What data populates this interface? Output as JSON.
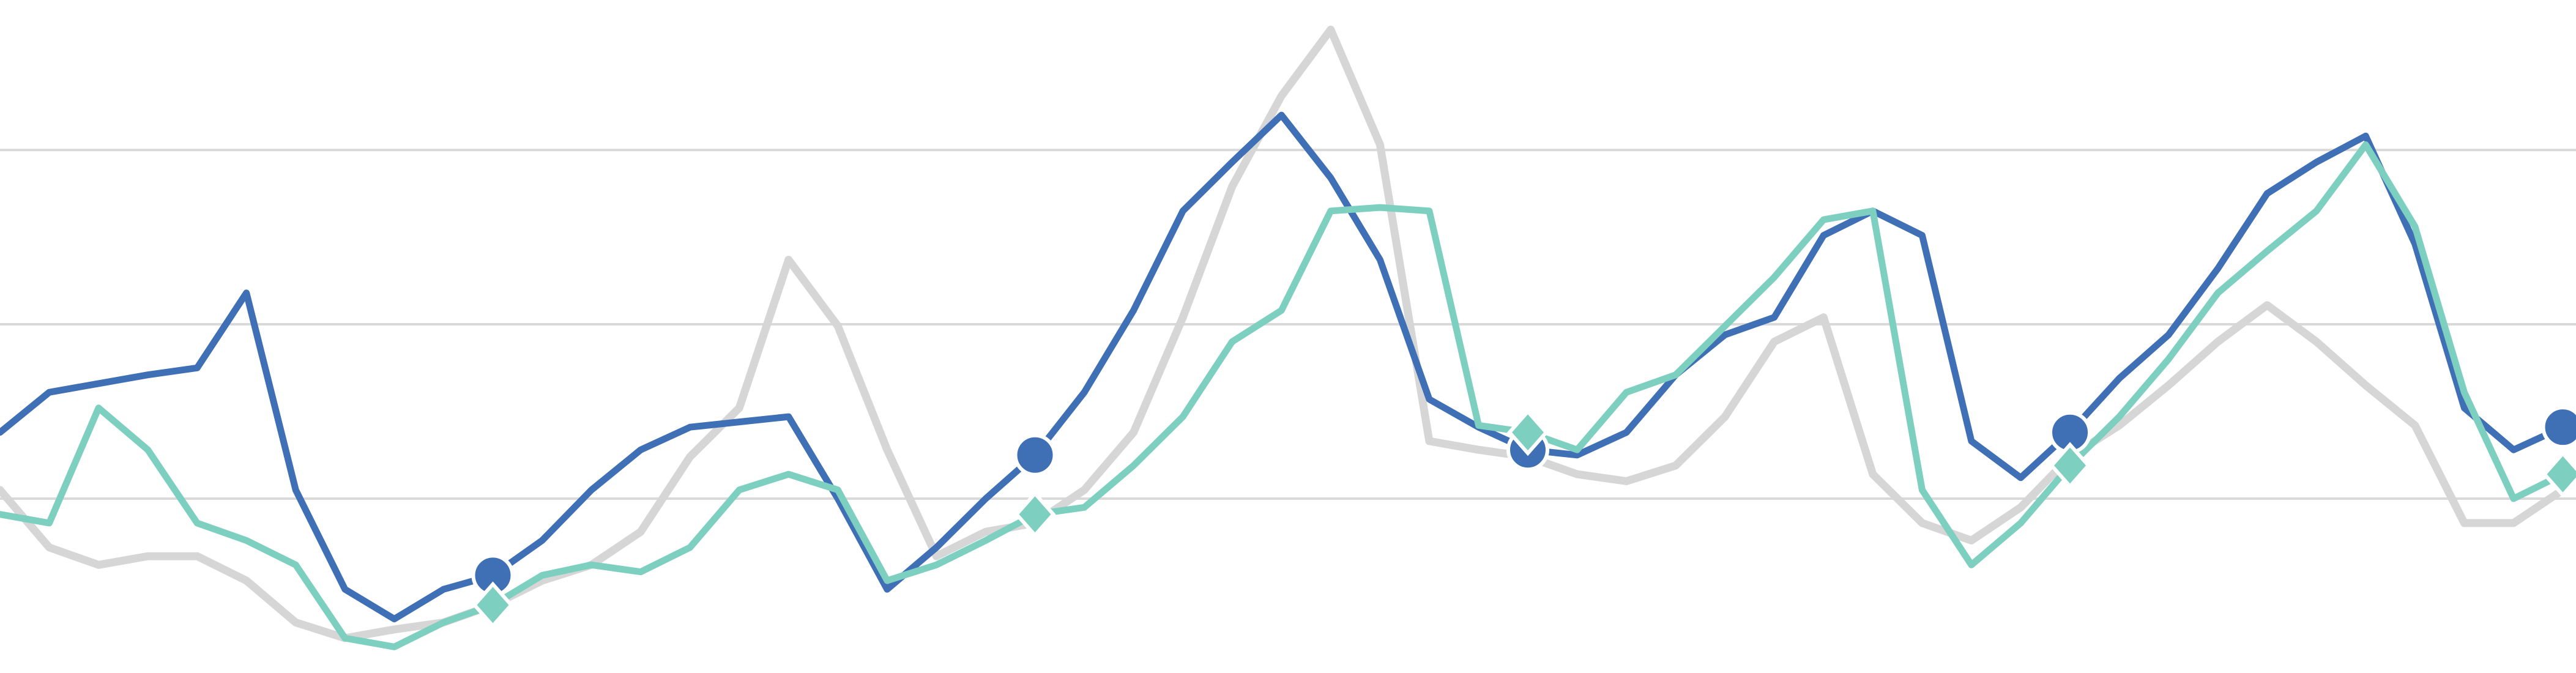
{
  "chart_data": {
    "type": "line",
    "x": [
      0,
      30,
      60,
      90,
      120,
      150,
      180,
      210,
      240,
      270,
      300,
      330,
      360,
      390,
      420,
      450,
      480,
      510,
      540,
      570,
      600,
      630,
      660,
      690,
      720,
      750,
      780,
      810,
      840,
      870,
      900,
      930,
      960,
      990,
      1020,
      1050,
      1080,
      1110,
      1140,
      1170,
      1200,
      1230,
      1260,
      1290,
      1320,
      1350,
      1380,
      1410,
      1440,
      1470,
      1500,
      1530,
      1560
    ],
    "xlim": [
      0,
      1568
    ],
    "ylim": [
      0,
      3.86
    ],
    "grid_lines": [
      1,
      2,
      3
    ],
    "grid": true,
    "marker_x": [
      300,
      630,
      930,
      1260,
      1560
    ],
    "series": [
      {
        "color": "#d6d6d6",
        "marker": "none",
        "values": [
          1.05,
          0.72,
          0.62,
          0.67,
          0.67,
          0.53,
          0.29,
          0.2,
          0.25,
          0.29,
          0.39,
          0.53,
          0.62,
          0.81,
          1.24,
          1.52,
          2.37,
          1.99,
          1.28,
          0.67,
          0.81,
          0.86,
          1.05,
          1.38,
          2.04,
          2.79,
          3.31,
          3.69,
          3.03,
          1.33,
          1.28,
          1.24,
          1.14,
          1.1,
          1.19,
          1.47,
          1.9,
          2.04,
          1.14,
          0.86,
          0.76,
          0.95,
          1.24,
          1.42,
          1.65,
          1.9,
          2.11,
          1.9,
          1.65,
          1.42,
          0.86,
          0.86,
          1.05
        ]
      },
      {
        "color": "#3f6fb5",
        "marker": "circle",
        "values": [
          1.38,
          1.61,
          1.66,
          1.71,
          1.75,
          2.18,
          1.05,
          0.48,
          0.31,
          0.48,
          0.56,
          0.76,
          1.05,
          1.28,
          1.41,
          1.44,
          1.47,
          1.0,
          0.48,
          0.72,
          1.0,
          1.25,
          1.61,
          2.08,
          2.65,
          2.93,
          3.2,
          2.84,
          2.37,
          1.57,
          1.41,
          1.28,
          1.25,
          1.38,
          1.71,
          1.94,
          2.04,
          2.51,
          2.65,
          2.51,
          1.33,
          1.12,
          1.38,
          1.69,
          1.94,
          2.32,
          2.75,
          2.93,
          3.08,
          2.46,
          1.52,
          1.28,
          1.41
        ]
      },
      {
        "color": "#7dcfc0",
        "marker": "diamond",
        "values": [
          0.91,
          0.86,
          1.52,
          1.28,
          0.86,
          0.76,
          0.62,
          0.2,
          0.15,
          0.29,
          0.39,
          0.56,
          0.62,
          0.58,
          0.72,
          1.05,
          1.14,
          1.05,
          0.53,
          0.62,
          0.76,
          0.91,
          0.95,
          1.19,
          1.47,
          1.9,
          2.08,
          2.65,
          2.67,
          2.65,
          1.42,
          1.38,
          1.28,
          1.61,
          1.71,
          1.99,
          2.27,
          2.6,
          2.65,
          1.05,
          0.62,
          0.86,
          1.19,
          1.47,
          1.8,
          2.18,
          2.42,
          2.65,
          3.03,
          2.56,
          1.61,
          1.0,
          1.14
        ]
      }
    ]
  }
}
